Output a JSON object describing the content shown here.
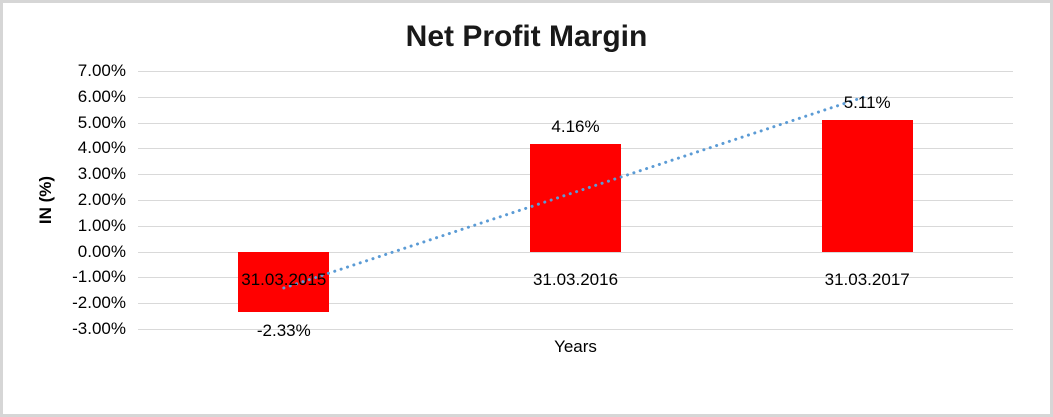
{
  "frame": {
    "background": "#FFFFFF",
    "border_color": "#D6D6D6"
  },
  "chart_data": {
    "type": "bar",
    "title": "Net Profit Margin",
    "xlabel": "Years",
    "ylabel": "IN (%)",
    "categories": [
      "31.03.2015",
      "31.03.2016",
      "31.03.2017"
    ],
    "series": [
      {
        "name": "Net Profit Margin",
        "color": "#FF0000",
        "values": [
          -2.33,
          4.16,
          5.11
        ],
        "data_labels": [
          "-2.33%",
          "4.16%",
          "5.11%"
        ]
      }
    ],
    "y_axis": {
      "min": -3,
      "max": 7,
      "step": 1,
      "tick_labels": [
        "7.00%",
        "6.00%",
        "5.00%",
        "4.00%",
        "3.00%",
        "2.00%",
        "1.00%",
        "0.00%",
        "-1.00%",
        "-2.00%",
        "-3.00%"
      ]
    },
    "gridlines": {
      "visible": true,
      "color": "#D9D9D9"
    },
    "legend": "none",
    "text_color": "#000000",
    "trendline": {
      "type": "linear",
      "style": "dotted",
      "color": "#5B9BD5",
      "fitted_values": [
        -1.41,
        2.31,
        6.03
      ]
    }
  }
}
